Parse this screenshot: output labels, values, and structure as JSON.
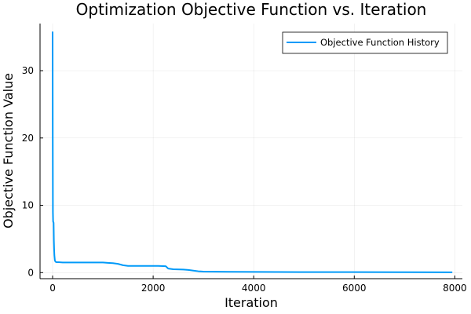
{
  "chart_data": {
    "type": "line",
    "title": "Optimization Objective Function vs. Iteration",
    "xlabel": "Iteration",
    "ylabel": "Objective Function Value",
    "xlim": [
      -250,
      8150
    ],
    "ylim": [
      -0.9,
      37
    ],
    "xticks": [
      0,
      2000,
      4000,
      6000,
      8000
    ],
    "xtick_labels": [
      "0",
      "2000",
      "4000",
      "6000",
      "8000"
    ],
    "yticks": [
      0,
      10,
      20,
      30
    ],
    "ytick_labels": [
      "0",
      "10",
      "20",
      "30"
    ],
    "grid": true,
    "legend_position": "top-right",
    "series": [
      {
        "name": "Objective Function History",
        "color": "#009af9",
        "x": [
          0,
          3,
          6,
          10,
          15,
          20,
          25,
          30,
          35,
          45,
          60,
          80,
          120,
          200,
          400,
          700,
          1000,
          1100,
          1200,
          1300,
          1400,
          1500,
          1800,
          2100,
          2250,
          2300,
          2400,
          2600,
          2700,
          2800,
          2900,
          3000,
          3500,
          4000,
          5000,
          6000,
          7000,
          7950
        ],
        "values": [
          35.8,
          20.0,
          9.0,
          7.6,
          7.5,
          7.4,
          4.8,
          3.5,
          2.6,
          1.8,
          1.6,
          1.55,
          1.55,
          1.5,
          1.5,
          1.5,
          1.5,
          1.45,
          1.4,
          1.3,
          1.1,
          1.0,
          1.0,
          1.0,
          0.95,
          0.6,
          0.5,
          0.45,
          0.4,
          0.3,
          0.2,
          0.15,
          0.12,
          0.1,
          0.08,
          0.07,
          0.06,
          0.05
        ]
      }
    ]
  }
}
